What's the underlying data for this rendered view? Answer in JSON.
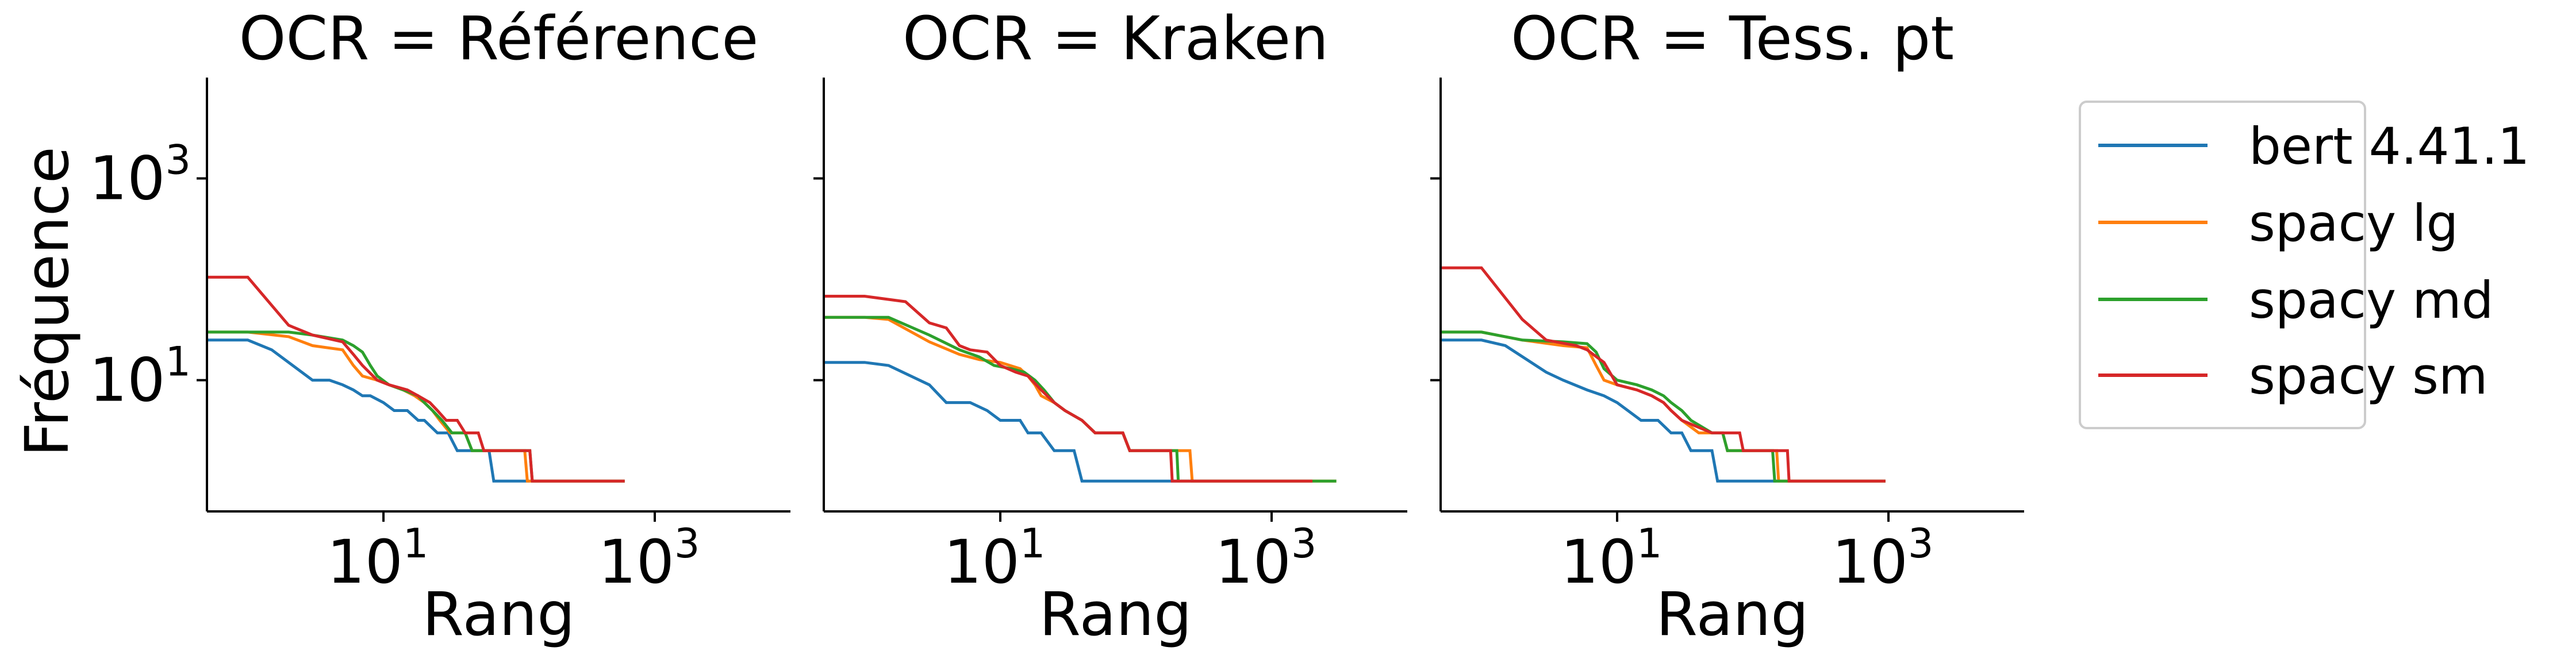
{
  "chart_data": {
    "type": "line",
    "xscale": "log",
    "yscale": "log",
    "xlabel": "Rang",
    "ylabel": "Fréquence",
    "xlim": [
      0.5,
      10000
    ],
    "ylim": [
      0.5,
      10000
    ],
    "x_ticks": [
      {
        "value": 10,
        "base": "10",
        "exp": "1"
      },
      {
        "value": 1000,
        "base": "10",
        "exp": "3"
      }
    ],
    "y_ticks": [
      {
        "value": 10,
        "base": "10",
        "exp": "1"
      },
      {
        "value": 1000,
        "base": "10",
        "exp": "3"
      }
    ],
    "colors": {
      "bert 4.41.1": "#1f77b4",
      "spacy lg": "#ff7f0e",
      "spacy md": "#2ca02c",
      "spacy sm": "#d62728"
    },
    "legend": {
      "position": "right",
      "entries": [
        "bert 4.41.1",
        "spacy lg",
        "spacy md",
        "spacy sm"
      ]
    },
    "panels": [
      {
        "title": "OCR = Référence",
        "series": [
          {
            "name": "bert 4.41.1",
            "points": [
              [
                0.5,
                25
              ],
              [
                1,
                25
              ],
              [
                1.5,
                20
              ],
              [
                3,
                10
              ],
              [
                4,
                10
              ],
              [
                5,
                9
              ],
              [
                6,
                8
              ],
              [
                7,
                7
              ],
              [
                8,
                7
              ],
              [
                10,
                6
              ],
              [
                12,
                5
              ],
              [
                15,
                5
              ],
              [
                18,
                4
              ],
              [
                20,
                4
              ],
              [
                25,
                3
              ],
              [
                30,
                3
              ],
              [
                35,
                2
              ],
              [
                60,
                2
              ],
              [
                65,
                1
              ],
              [
                120,
                1
              ]
            ]
          },
          {
            "name": "spacy lg",
            "points": [
              [
                0.5,
                30
              ],
              [
                1,
                30
              ],
              [
                2,
                27
              ],
              [
                3,
                22
              ],
              [
                5,
                20
              ],
              [
                6,
                14
              ],
              [
                7,
                11
              ],
              [
                9,
                10
              ],
              [
                11,
                9
              ],
              [
                14,
                8
              ],
              [
                17,
                7
              ],
              [
                20,
                6
              ],
              [
                23,
                5
              ],
              [
                26,
                4
              ],
              [
                31,
                3
              ],
              [
                40,
                3
              ],
              [
                45,
                2
              ],
              [
                110,
                2
              ],
              [
                115,
                1
              ],
              [
                600,
                1
              ]
            ]
          },
          {
            "name": "spacy md",
            "points": [
              [
                0.5,
                30
              ],
              [
                1,
                30
              ],
              [
                2,
                30
              ],
              [
                3,
                28
              ],
              [
                5,
                25
              ],
              [
                6,
                22
              ],
              [
                7,
                19
              ],
              [
                8,
                14
              ],
              [
                9,
                11
              ],
              [
                11,
                9
              ],
              [
                14,
                8
              ],
              [
                18,
                7
              ],
              [
                20,
                6
              ],
              [
                23,
                5
              ],
              [
                27,
                4
              ],
              [
                32,
                3
              ],
              [
                40,
                3
              ],
              [
                45,
                2
              ],
              [
                120,
                2
              ],
              [
                125,
                1
              ],
              [
                600,
                1
              ]
            ]
          },
          {
            "name": "spacy sm",
            "points": [
              [
                0.5,
                105
              ],
              [
                1,
                105
              ],
              [
                2,
                35
              ],
              [
                3,
                28
              ],
              [
                5,
                24
              ],
              [
                6,
                18
              ],
              [
                7,
                14
              ],
              [
                9,
                10
              ],
              [
                11,
                9
              ],
              [
                15,
                8
              ],
              [
                18,
                7
              ],
              [
                22,
                6
              ],
              [
                25,
                5
              ],
              [
                29,
                4
              ],
              [
                35,
                4
              ],
              [
                40,
                3
              ],
              [
                50,
                3
              ],
              [
                55,
                2
              ],
              [
                120,
                2
              ],
              [
                125,
                1
              ],
              [
                600,
                1
              ]
            ]
          }
        ]
      },
      {
        "title": "OCR = Kraken",
        "series": [
          {
            "name": "bert 4.41.1",
            "points": [
              [
                0.5,
                15
              ],
              [
                1,
                15
              ],
              [
                1.5,
                14
              ],
              [
                3,
                9
              ],
              [
                4,
                6
              ],
              [
                6,
                6
              ],
              [
                8,
                5
              ],
              [
                10,
                4
              ],
              [
                14,
                4
              ],
              [
                16,
                3
              ],
              [
                20,
                3
              ],
              [
                25,
                2
              ],
              [
                35,
                2
              ],
              [
                40,
                1
              ],
              [
                200,
                1
              ]
            ]
          },
          {
            "name": "spacy lg",
            "points": [
              [
                0.5,
                42
              ],
              [
                1,
                42
              ],
              [
                1.5,
                40
              ],
              [
                3,
                24
              ],
              [
                5,
                18
              ],
              [
                7,
                16
              ],
              [
                10,
                15
              ],
              [
                14,
                13
              ],
              [
                16,
                11
              ],
              [
                18,
                9
              ],
              [
                20,
                7
              ],
              [
                25,
                6
              ],
              [
                30,
                5
              ],
              [
                40,
                4
              ],
              [
                50,
                3
              ],
              [
                80,
                3
              ],
              [
                90,
                2
              ],
              [
                250,
                2
              ],
              [
                260,
                1
              ],
              [
                3000,
                1
              ]
            ]
          },
          {
            "name": "spacy md",
            "points": [
              [
                0.5,
                42
              ],
              [
                1,
                42
              ],
              [
                1.5,
                42
              ],
              [
                3,
                28
              ],
              [
                5,
                20
              ],
              [
                7,
                17
              ],
              [
                9,
                14
              ],
              [
                12,
                13
              ],
              [
                15,
                12
              ],
              [
                18,
                10
              ],
              [
                21,
                8
              ],
              [
                25,
                6
              ],
              [
                30,
                5
              ],
              [
                40,
                4
              ],
              [
                50,
                3
              ],
              [
                80,
                3
              ],
              [
                90,
                2
              ],
              [
                200,
                2
              ],
              [
                205,
                1
              ],
              [
                3000,
                1
              ]
            ]
          },
          {
            "name": "spacy sm",
            "points": [
              [
                0.5,
                68
              ],
              [
                1,
                68
              ],
              [
                2,
                60
              ],
              [
                3,
                37
              ],
              [
                4,
                33
              ],
              [
                5,
                22
              ],
              [
                6,
                20
              ],
              [
                8,
                19
              ],
              [
                10,
                14
              ],
              [
                13,
                12
              ],
              [
                16,
                11
              ],
              [
                20,
                8
              ],
              [
                25,
                6
              ],
              [
                30,
                5
              ],
              [
                40,
                4
              ],
              [
                50,
                3
              ],
              [
                80,
                3
              ],
              [
                90,
                2
              ],
              [
                180,
                2
              ],
              [
                185,
                1
              ],
              [
                2000,
                1
              ]
            ]
          }
        ]
      },
      {
        "title": "OCR = Tess. pt",
        "series": [
          {
            "name": "bert 4.41.1",
            "points": [
              [
                0.5,
                25
              ],
              [
                1,
                25
              ],
              [
                1.5,
                22
              ],
              [
                3,
                12
              ],
              [
                4,
                10
              ],
              [
                6,
                8
              ],
              [
                8,
                7
              ],
              [
                10,
                6
              ],
              [
                12,
                5
              ],
              [
                15,
                4
              ],
              [
                20,
                4
              ],
              [
                25,
                3
              ],
              [
                30,
                3
              ],
              [
                35,
                2
              ],
              [
                50,
                2
              ],
              [
                55,
                1
              ],
              [
                150,
                1
              ]
            ]
          },
          {
            "name": "spacy lg",
            "points": [
              [
                0.5,
                30
              ],
              [
                1,
                30
              ],
              [
                2,
                25
              ],
              [
                4,
                22
              ],
              [
                6,
                21
              ],
              [
                7,
                14
              ],
              [
                8,
                10
              ],
              [
                10,
                9
              ],
              [
                14,
                8
              ],
              [
                18,
                7
              ],
              [
                22,
                6
              ],
              [
                25,
                5
              ],
              [
                30,
                4
              ],
              [
                40,
                3
              ],
              [
                60,
                3
              ],
              [
                65,
                2
              ],
              [
                150,
                2
              ],
              [
                155,
                1
              ],
              [
                950,
                1
              ]
            ]
          },
          {
            "name": "spacy md",
            "points": [
              [
                0.5,
                30
              ],
              [
                1,
                30
              ],
              [
                2,
                25
              ],
              [
                4,
                24
              ],
              [
                6,
                23
              ],
              [
                7,
                19
              ],
              [
                8,
                13
              ],
              [
                10,
                10
              ],
              [
                14,
                9
              ],
              [
                18,
                8
              ],
              [
                22,
                7
              ],
              [
                25,
                6
              ],
              [
                30,
                5
              ],
              [
                35,
                4
              ],
              [
                50,
                3
              ],
              [
                60,
                3
              ],
              [
                65,
                2
              ],
              [
                140,
                2
              ],
              [
                145,
                1
              ],
              [
                950,
                1
              ]
            ]
          },
          {
            "name": "spacy sm",
            "points": [
              [
                0.5,
                130
              ],
              [
                1,
                130
              ],
              [
                2,
                40
              ],
              [
                3,
                25
              ],
              [
                5,
                22
              ],
              [
                6,
                20
              ],
              [
                8,
                15
              ],
              [
                10,
                9
              ],
              [
                14,
                8
              ],
              [
                18,
                7
              ],
              [
                22,
                6
              ],
              [
                25,
                5
              ],
              [
                30,
                4
              ],
              [
                50,
                3
              ],
              [
                80,
                3
              ],
              [
                85,
                2
              ],
              [
                180,
                2
              ],
              [
                185,
                1
              ],
              [
                950,
                1
              ]
            ]
          }
        ]
      }
    ]
  }
}
